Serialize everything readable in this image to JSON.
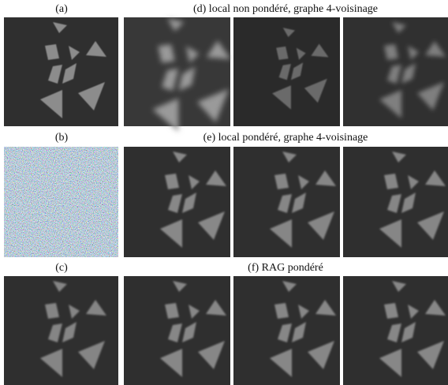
{
  "left_column": [
    "(a)",
    "(b)",
    "(c)"
  ],
  "rows": [
    "(d) local non pondéré, graphe 4-voisinage",
    "(e) local pondéré, graphe 4-voisinage",
    "(f) RAG pondéré"
  ]
}
